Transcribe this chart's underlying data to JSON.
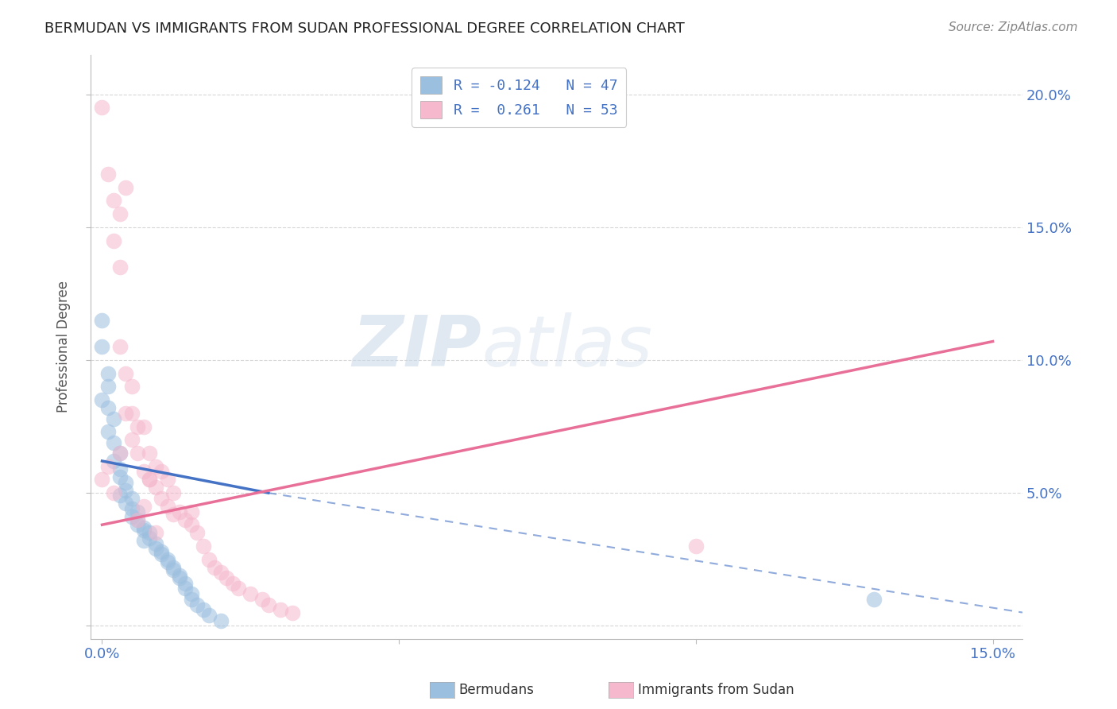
{
  "title": "BERMUDAN VS IMMIGRANTS FROM SUDAN PROFESSIONAL DEGREE CORRELATION CHART",
  "source": "Source: ZipAtlas.com",
  "xlabel_ticks": [
    "0.0%",
    "",
    "",
    "15.0%"
  ],
  "xlabel_vals": [
    0.0,
    0.05,
    0.1,
    0.15
  ],
  "ylabel_ticks_right": [
    "20.0%",
    "15.0%",
    "10.0%",
    "5.0%",
    ""
  ],
  "ylabel_vals": [
    0.2,
    0.15,
    0.1,
    0.05,
    0.0
  ],
  "xlim": [
    -0.002,
    0.155
  ],
  "ylim": [
    -0.005,
    0.215
  ],
  "legend_label_blue": "R = -0.124   N = 47",
  "legend_label_pink": "R =  0.261   N = 53",
  "blue_color": "#9bbfdf",
  "pink_color": "#f5b8cc",
  "blue_trend_color": "#4472c4",
  "pink_trend_color": "#e87098",
  "blue_trend": {
    "x_start": 0.0,
    "y_start": 0.062,
    "x_end": 0.028,
    "y_end": 0.05,
    "dash_end_x": 0.155,
    "dash_end_y": 0.005
  },
  "pink_trend": {
    "x_start": 0.0,
    "y_start": 0.038,
    "x_end": 0.15,
    "y_end": 0.107
  },
  "watermark_text": "ZIPatlas",
  "grid_color": "#cccccc",
  "bg_color": "#ffffff",
  "tick_color": "#4472c4",
  "bermudans_label": "Bermudans",
  "sudan_label": "Immigrants from Sudan"
}
